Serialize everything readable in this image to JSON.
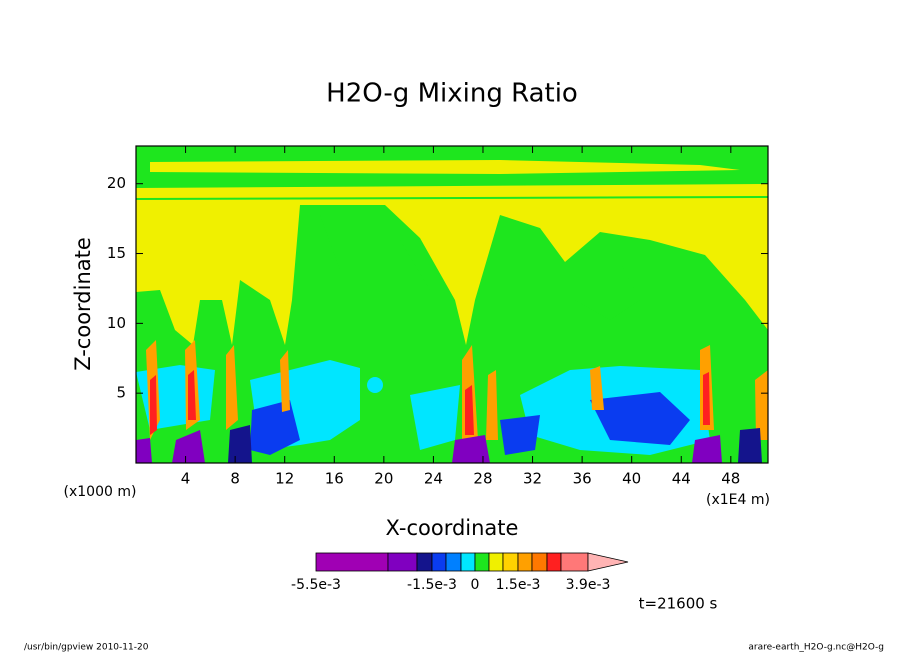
{
  "chart_data": {
    "type": "contour",
    "title": "H2O-g Mixing Ratio",
    "x_label": "X-coordinate",
    "y_label": "Z-coordinate",
    "x_unit": "(x1E4 m)",
    "y_unit": "(x1000 m)",
    "xlim": [
      0,
      51
    ],
    "xticks": [
      4,
      8,
      12,
      16,
      20,
      24,
      28,
      32,
      36,
      40,
      44,
      48
    ],
    "ylim": [
      0,
      22.7
    ],
    "yticks": [
      5,
      10,
      15,
      20
    ],
    "colorbar": {
      "colors": [
        "#a000b4",
        "#8000c0",
        "#14148c",
        "#0a3cf0",
        "#0080ff",
        "#00e6ff",
        "#1ee61e",
        "#f0f000",
        "#ffd200",
        "#ffa000",
        "#ff7800",
        "#ff2020",
        "#ff7878",
        "#ffb4b4"
      ],
      "labels": [
        "-5.5e-3",
        "-1.5e-3",
        "0",
        "1.5e-3",
        "3.9e-3"
      ]
    },
    "time_label": "t=21600 s",
    "footer_left": "/usr/bin/gpview  2010-11-20",
    "footer_right": "arare-earth_H2O-g.nc@H2O-g"
  }
}
